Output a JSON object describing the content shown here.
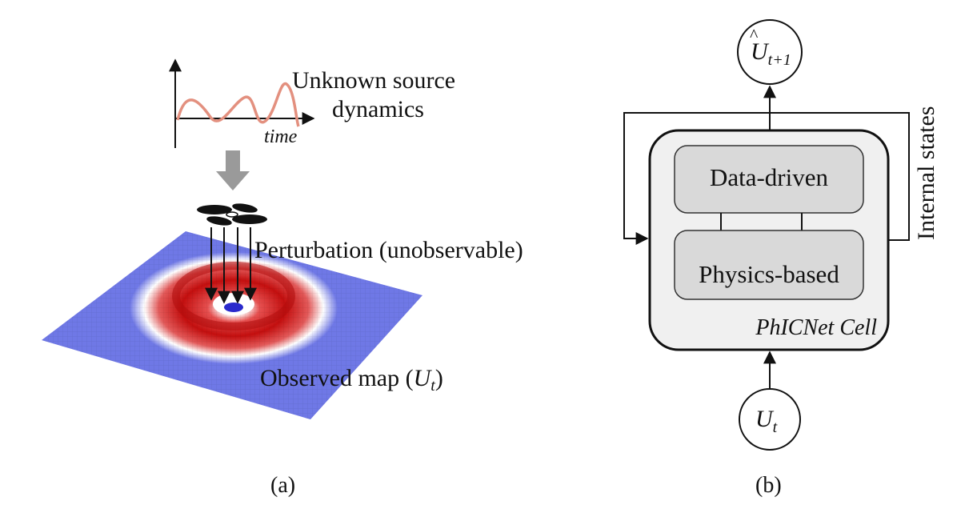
{
  "panel_a": {
    "source_label_line1": "Unknown source",
    "source_label_line2": "dynamics",
    "time_label": "time",
    "perturbation_label": "Perturbation (unobservable)",
    "observed_label_prefix": "Observed map (",
    "observed_symbol": "U",
    "observed_subscript": "t",
    "observed_label_suffix": ")",
    "caption": "(a)"
  },
  "panel_b": {
    "output_symbol": "U",
    "output_subscript": "t+1",
    "input_symbol": "U",
    "input_subscript": "t",
    "data_driven_label": "Data-driven",
    "physics_based_label": "Physics-based",
    "cell_label": "PhICNet Cell",
    "internal_states_label": "Internal states",
    "caption": "(b)"
  },
  "colors": {
    "plane_blue": "#6f78e6",
    "ring_red": "#cc1a1a",
    "wave_line": "#e3907f",
    "down_arrow_gray": "#9a9a9a",
    "box_fill": "#f0f0f0",
    "inner_box_fill": "#d9d9d9"
  },
  "icons": {
    "drone": "propeller-icon"
  }
}
